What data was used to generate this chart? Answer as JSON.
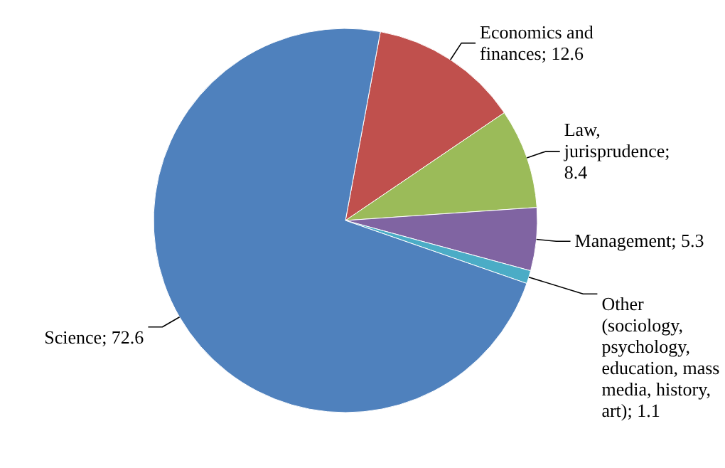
{
  "chart_data": {
    "type": "pie",
    "categories": [
      "Economics and finances",
      "Law, jurisprudence",
      "Management",
      "Other (sociology, psychology, education, mass media, history, art)",
      "Science"
    ],
    "values": [
      12.6,
      8.4,
      5.3,
      1.1,
      72.6
    ],
    "value_labels": [
      "; 12.6",
      "; 8.4",
      "; 5.3",
      "; 1.1",
      "; 72.6"
    ],
    "colors": [
      "#c0504d",
      "#9bbb59",
      "#8064a2",
      "#4bacc6",
      "#4f81bd"
    ]
  }
}
